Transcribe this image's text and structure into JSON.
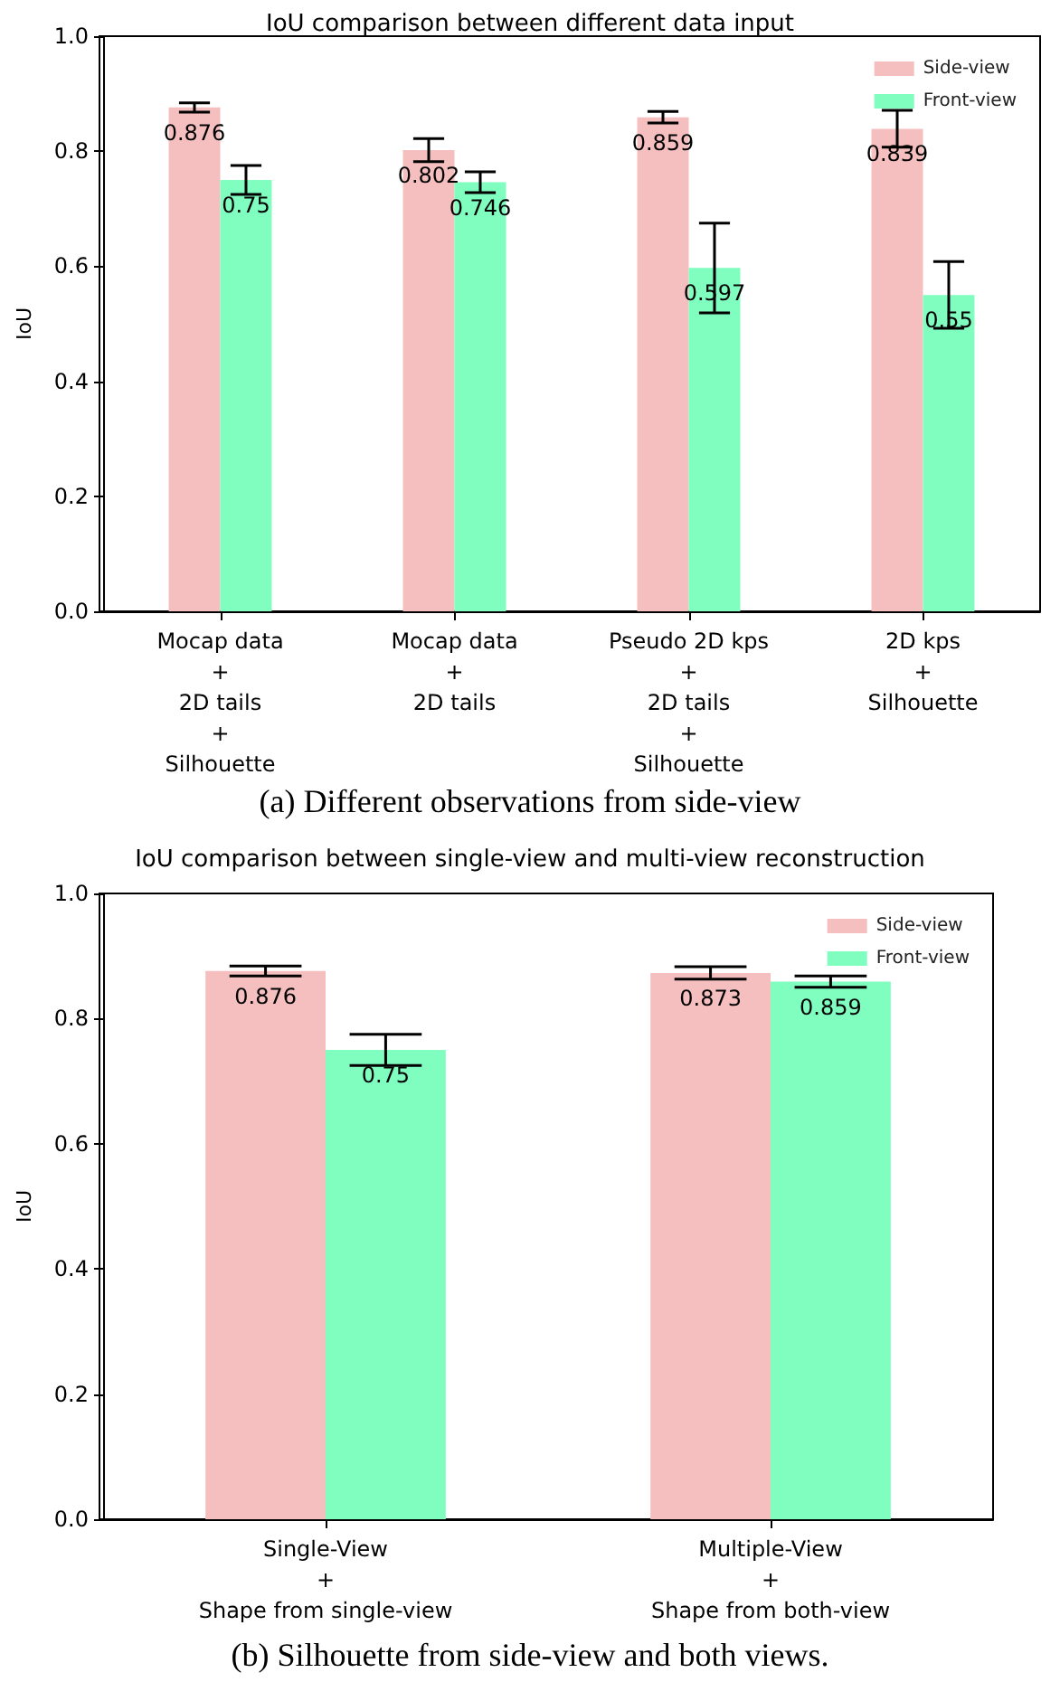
{
  "chart_data": [
    {
      "type": "bar",
      "title": "IoU comparison between different data input",
      "ylabel": "IoU",
      "categories": [
        "Mocap data\n+\n2D tails\n+\nSilhouette",
        "Mocap data\n+\n2D tails",
        "Pseudo 2D kps\n+\n2D tails\n+\nSilhouette",
        "2D kps\n+\nSilhouette"
      ],
      "series": [
        {
          "name": "Side-view",
          "color": "#f6bfbf",
          "values": [
            0.876,
            0.802,
            0.859,
            0.839
          ],
          "errors": [
            0.008,
            0.02,
            0.01,
            0.032
          ]
        },
        {
          "name": "Front-view",
          "color": "#7ffec0",
          "values": [
            0.75,
            0.746,
            0.597,
            0.55
          ],
          "errors": [
            0.025,
            0.018,
            0.078,
            0.058
          ]
        }
      ],
      "ylim": [
        0,
        1
      ],
      "yticks": [
        {
          "value": 0,
          "label": "0.0"
        },
        {
          "value": 0.2,
          "label": "0.2"
        },
        {
          "value": 0.4,
          "label": "0.4"
        },
        {
          "value": 0.6,
          "label": "0.6"
        },
        {
          "value": 0.8,
          "label": "0.8"
        },
        {
          "value": 1,
          "label": "1.0"
        }
      ],
      "grid": false,
      "legend": "top right",
      "data_labels": true,
      "annotations": [
        "(a) Different observations from side-view"
      ]
    },
    {
      "type": "bar",
      "title": "IoU comparison between single-view and multi-view reconstruction",
      "ylabel": "IoU",
      "categories": [
        "Single-View\n+\nShape from single-view",
        "Multiple-View\n+\nShape from both-view"
      ],
      "series": [
        {
          "name": "Side-view",
          "color": "#f6bfbf",
          "values": [
            0.876,
            0.873
          ],
          "errors": [
            0.008,
            0.01
          ]
        },
        {
          "name": "Front-view",
          "color": "#7ffec0",
          "values": [
            0.75,
            0.859
          ],
          "errors": [
            0.025,
            0.009
          ]
        }
      ],
      "ylim": [
        0,
        1
      ],
      "yticks": [
        {
          "value": 0,
          "label": "0.0"
        },
        {
          "value": 0.2,
          "label": "0.2"
        },
        {
          "value": 0.4,
          "label": "0.4"
        },
        {
          "value": 0.6,
          "label": "0.6"
        },
        {
          "value": 0.8,
          "label": "0.8"
        },
        {
          "value": 1,
          "label": "1.0"
        }
      ],
      "grid": false,
      "legend": "top right",
      "data_labels": true,
      "annotations": [
        "(b) Silhouette from side-view and both views."
      ]
    }
  ]
}
